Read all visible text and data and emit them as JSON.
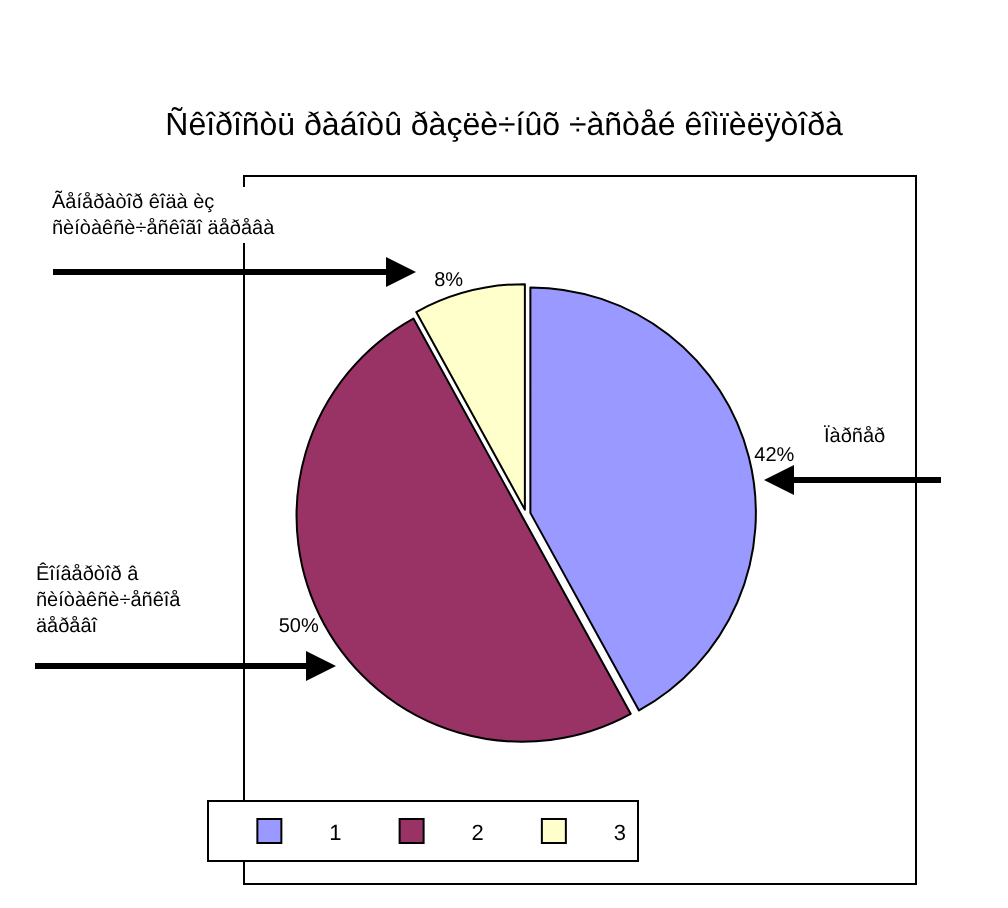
{
  "chart_data": {
    "type": "pie",
    "title": "Ñêîðîñòü ðàáîòû ðàçëè÷íûõ ÷àñòåé êîìïèëÿòîðà",
    "categories": [
      "1",
      "2",
      "3"
    ],
    "values": [
      42,
      50,
      8
    ],
    "colors": [
      "#9999ff",
      "#993366",
      "#ffffcc"
    ],
    "value_labels": [
      "42%",
      "50%",
      "8%"
    ],
    "legend": "bottom",
    "annotations": [
      "Ïàðñåð",
      "Ãåíåðàòîð êîäà èç\nñèíòàêñè÷åñêîãî äåðåâà",
      "Êîíâåðòîð â\nñèíòàêñè÷åñêîå\näåðåâî"
    ]
  }
}
